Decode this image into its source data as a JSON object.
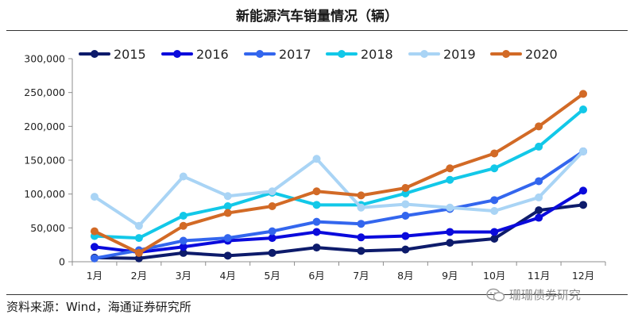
{
  "page": {
    "title": "新能源汽车销量情况（辆）",
    "source": "资料来源：Wind，海通证券研究所",
    "watermark": "珊珊债券研究"
  },
  "chart_data": {
    "type": "line",
    "title": "新能源汽车销量情况（辆）",
    "categories": [
      "1月",
      "2月",
      "3月",
      "4月",
      "5月",
      "6月",
      "7月",
      "8月",
      "9月",
      "10月",
      "11月",
      "12月"
    ],
    "ylim": [
      0,
      300000
    ],
    "yticks": [
      0,
      50000,
      100000,
      150000,
      200000,
      250000,
      300000
    ],
    "ytick_labels": [
      "0",
      "50,000",
      "100,000",
      "150,000",
      "200,000",
      "250,000",
      "300,000"
    ],
    "grid": false,
    "legend": "top",
    "series": [
      {
        "name": "2015",
        "color": "#0d1b6b",
        "values": [
          6000,
          5000,
          13000,
          9000,
          13000,
          21000,
          16000,
          18000,
          28000,
          34000,
          76000,
          84000
        ]
      },
      {
        "name": "2016",
        "color": "#0a0adc",
        "values": [
          22000,
          14000,
          22000,
          31000,
          35000,
          44000,
          36000,
          38000,
          44000,
          44000,
          65000,
          105000
        ]
      },
      {
        "name": "2017",
        "color": "#3366ee",
        "values": [
          5000,
          17000,
          31000,
          35000,
          45000,
          59000,
          56000,
          68000,
          78000,
          91000,
          119000,
          163000
        ]
      },
      {
        "name": "2018",
        "color": "#12c8e8",
        "values": [
          38000,
          35000,
          68000,
          82000,
          102000,
          84000,
          84000,
          101000,
          121000,
          138000,
          170000,
          225000
        ]
      },
      {
        "name": "2019",
        "color": "#a9d4f5",
        "values": [
          96000,
          53000,
          126000,
          97000,
          104000,
          152000,
          80000,
          85000,
          80000,
          75000,
          95000,
          163000
        ]
      },
      {
        "name": "2020",
        "color": "#d26a26",
        "values": [
          45000,
          13000,
          53000,
          72000,
          82000,
          104000,
          98000,
          109000,
          138000,
          160000,
          200000,
          248000
        ]
      }
    ]
  }
}
